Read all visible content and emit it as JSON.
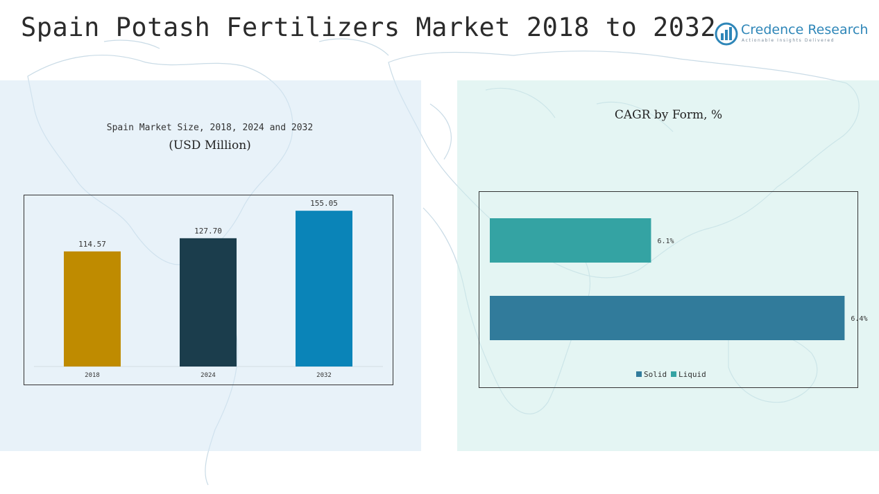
{
  "page": {
    "title": "Spain Potash Fertilizers Market 2018 to 2032"
  },
  "logo": {
    "name": "Credence Research",
    "tagline": "Actionable Insights Delivered",
    "icon": "bar-chart-circle-icon",
    "color": "#2e86b8"
  },
  "left_panel": {
    "subtitle": "Spain Market Size, 2018, 2024 and 2032",
    "unit": "(USD Million)"
  },
  "right_panel": {
    "title": "CAGR by Form, %"
  },
  "chart_data": [
    {
      "type": "bar",
      "title": "Spain Market Size, 2018, 2024 and 2032",
      "ylabel": "(USD Million)",
      "categories": [
        "2018",
        "2024",
        "2032"
      ],
      "values": [
        114.57,
        127.7,
        155.05
      ],
      "value_labels": [
        "114.57",
        "127.70",
        "155.05"
      ],
      "colors": [
        "#bf8b00",
        "#1b3d4c",
        "#0a84b8"
      ],
      "ylim": [
        0,
        160
      ],
      "grid": false
    },
    {
      "type": "bar",
      "orientation": "horizontal",
      "title": "CAGR by Form, %",
      "categories": [
        "Liquid",
        "Solid"
      ],
      "values": [
        6.1,
        6.4
      ],
      "value_labels": [
        "6.1%",
        "6.4%"
      ],
      "colors": [
        "#34a3a3",
        "#317b9b"
      ],
      "xlim": [
        5.85,
        6.42
      ],
      "legend": {
        "placement": "bottom",
        "items": [
          {
            "label": "Solid",
            "color": "#317b9b"
          },
          {
            "label": "Liquid",
            "color": "#34a3a3"
          }
        ]
      },
      "grid": false
    }
  ]
}
